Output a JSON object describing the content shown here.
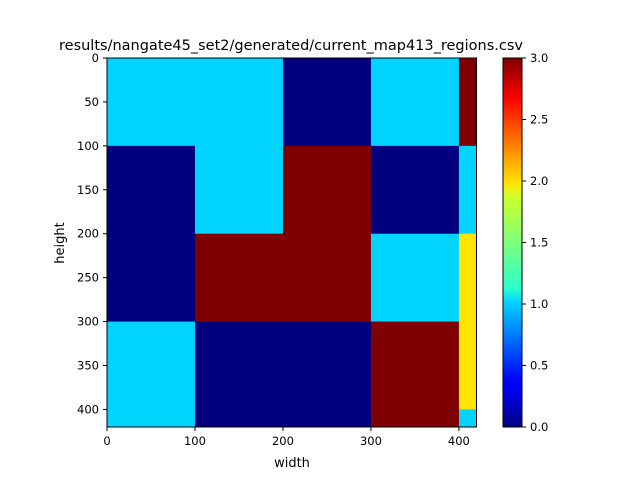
{
  "chart_data": {
    "type": "heatmap",
    "title": "results/nangate45_set2/generated/current_map413_regions.csv",
    "xlabel": "width",
    "ylabel": "height",
    "xlim": [
      0,
      420
    ],
    "ylim": [
      420,
      0
    ],
    "x_ticks": [
      0,
      100,
      200,
      300,
      400
    ],
    "y_ticks": [
      0,
      50,
      100,
      150,
      200,
      250,
      300,
      350,
      400
    ],
    "cell_width": 100,
    "cell_height": 100,
    "x_edges": [
      0,
      100,
      200,
      300,
      400,
      420
    ],
    "y_edges": [
      0,
      100,
      200,
      300,
      400,
      420
    ],
    "values": [
      [
        1,
        1,
        0,
        1,
        3
      ],
      [
        0,
        1,
        3,
        0,
        1
      ],
      [
        0,
        3,
        3,
        1,
        2
      ],
      [
        1,
        0,
        0,
        3,
        2
      ],
      [
        1,
        0,
        0,
        3,
        1
      ]
    ],
    "colormap": "jet",
    "colorbar": {
      "range": [
        0.0,
        3.0
      ],
      "ticks": [
        "0.0",
        "0.5",
        "1.0",
        "1.5",
        "2.0",
        "2.5",
        "3.0"
      ]
    },
    "value_colors": {
      "0": "#00007f",
      "1": "#00d4ff",
      "2": "#ffe500",
      "3": "#7f0000"
    },
    "grid": false,
    "legend": "colorbar-right"
  }
}
